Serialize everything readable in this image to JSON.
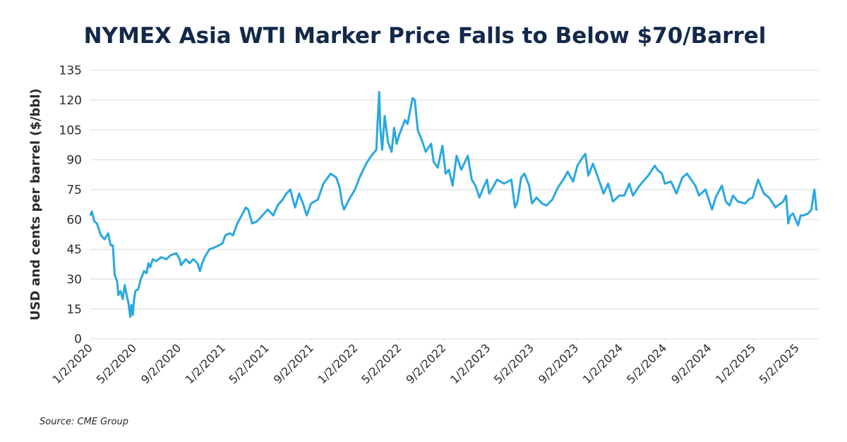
{
  "chart_data": {
    "type": "line",
    "title": "NYMEX Asia WTI Marker Price Falls to Below $70/Barrel",
    "xlabel": "",
    "ylabel": "USD and cents per barrel ($/bbl)",
    "ylim": [
      0,
      135
    ],
    "y_ticks": [
      0,
      15,
      30,
      45,
      60,
      75,
      90,
      105,
      120,
      135
    ],
    "x_ticks": [
      "1/2/2020",
      "5/2/2020",
      "9/2/2020",
      "1/2/2021",
      "5/2/2021",
      "9/2/2021",
      "1/2/2022",
      "5/2/2022",
      "9/2/2022",
      "1/2/2023",
      "5/2/2023",
      "9/2/2023",
      "1/2/2024",
      "5/2/2024",
      "9/2/2024",
      "1/2/2025",
      "5/2/2025"
    ],
    "xlim": [
      "2020-01-02",
      "2025-07-03"
    ],
    "grid": "horizontal",
    "legend": "none",
    "line_color": "#29a8e0",
    "series": [
      {
        "points": [
          [
            "2020-01-02",
            62
          ],
          [
            "2020-01-06",
            64
          ],
          [
            "2020-01-13",
            59
          ],
          [
            "2020-01-20",
            58
          ],
          [
            "2020-01-31",
            52
          ],
          [
            "2020-02-10",
            50
          ],
          [
            "2020-02-20",
            53
          ],
          [
            "2020-02-27",
            47
          ],
          [
            "2020-03-04",
            47
          ],
          [
            "2020-03-09",
            32
          ],
          [
            "2020-03-16",
            29
          ],
          [
            "2020-03-19",
            22
          ],
          [
            "2020-03-25",
            24
          ],
          [
            "2020-03-31",
            20
          ],
          [
            "2020-04-06",
            27
          ],
          [
            "2020-04-10",
            23
          ],
          [
            "2020-04-16",
            18
          ],
          [
            "2020-04-21",
            11
          ],
          [
            "2020-04-24",
            17
          ],
          [
            "2020-04-28",
            12
          ],
          [
            "2020-05-01",
            19
          ],
          [
            "2020-05-05",
            24
          ],
          [
            "2020-05-13",
            25
          ],
          [
            "2020-05-20",
            30
          ],
          [
            "2020-05-29",
            34
          ],
          [
            "2020-06-05",
            33
          ],
          [
            "2020-06-10",
            38
          ],
          [
            "2020-06-15",
            36
          ],
          [
            "2020-06-22",
            40
          ],
          [
            "2020-07-01",
            39
          ],
          [
            "2020-07-15",
            41
          ],
          [
            "2020-07-30",
            40
          ],
          [
            "2020-08-10",
            42
          ],
          [
            "2020-08-26",
            43
          ],
          [
            "2020-09-04",
            40
          ],
          [
            "2020-09-08",
            37
          ],
          [
            "2020-09-21",
            40
          ],
          [
            "2020-10-01",
            38
          ],
          [
            "2020-10-12",
            40
          ],
          [
            "2020-10-23",
            38
          ],
          [
            "2020-10-30",
            34
          ],
          [
            "2020-11-05",
            38
          ],
          [
            "2020-11-12",
            41
          ],
          [
            "2020-11-25",
            45
          ],
          [
            "2020-12-10",
            46
          ],
          [
            "2020-12-21",
            47
          ],
          [
            "2020-12-31",
            48
          ],
          [
            "2021-01-08",
            52
          ],
          [
            "2021-01-20",
            53
          ],
          [
            "2021-01-29",
            52
          ],
          [
            "2021-02-10",
            58
          ],
          [
            "2021-02-25",
            63
          ],
          [
            "2021-03-05",
            66
          ],
          [
            "2021-03-12",
            65
          ],
          [
            "2021-03-23",
            58
          ],
          [
            "2021-04-05",
            59
          ],
          [
            "2021-04-20",
            62
          ],
          [
            "2021-05-05",
            65
          ],
          [
            "2021-05-20",
            62
          ],
          [
            "2021-06-01",
            67
          ],
          [
            "2021-06-15",
            70
          ],
          [
            "2021-06-25",
            73
          ],
          [
            "2021-07-06",
            75
          ],
          [
            "2021-07-19",
            66
          ],
          [
            "2021-07-30",
            73
          ],
          [
            "2021-08-10",
            68
          ],
          [
            "2021-08-20",
            62
          ],
          [
            "2021-09-01",
            68
          ],
          [
            "2021-09-20",
            70
          ],
          [
            "2021-10-05",
            78
          ],
          [
            "2021-10-25",
            83
          ],
          [
            "2021-11-10",
            81
          ],
          [
            "2021-11-19",
            76
          ],
          [
            "2021-11-26",
            68
          ],
          [
            "2021-12-01",
            65
          ],
          [
            "2021-12-15",
            70
          ],
          [
            "2021-12-31",
            75
          ],
          [
            "2022-01-15",
            82
          ],
          [
            "2022-01-31",
            88
          ],
          [
            "2022-02-14",
            92
          ],
          [
            "2022-02-28",
            95
          ],
          [
            "2022-03-03",
            107
          ],
          [
            "2022-03-08",
            124
          ],
          [
            "2022-03-11",
            106
          ],
          [
            "2022-03-16",
            95
          ],
          [
            "2022-03-23",
            112
          ],
          [
            "2022-04-01",
            99
          ],
          [
            "2022-04-11",
            94
          ],
          [
            "2022-04-18",
            106
          ],
          [
            "2022-04-25",
            98
          ],
          [
            "2022-05-03",
            103
          ],
          [
            "2022-05-18",
            110
          ],
          [
            "2022-05-25",
            108
          ],
          [
            "2022-06-08",
            121
          ],
          [
            "2022-06-14",
            120
          ],
          [
            "2022-06-22",
            105
          ],
          [
            "2022-07-05",
            99
          ],
          [
            "2022-07-14",
            94
          ],
          [
            "2022-07-29",
            98
          ],
          [
            "2022-08-05",
            89
          ],
          [
            "2022-08-16",
            86
          ],
          [
            "2022-08-29",
            97
          ],
          [
            "2022-09-07",
            83
          ],
          [
            "2022-09-16",
            85
          ],
          [
            "2022-09-26",
            77
          ],
          [
            "2022-10-07",
            92
          ],
          [
            "2022-10-20",
            85
          ],
          [
            "2022-11-07",
            92
          ],
          [
            "2022-11-18",
            80
          ],
          [
            "2022-11-28",
            77
          ],
          [
            "2022-12-09",
            71
          ],
          [
            "2022-12-20",
            76
          ],
          [
            "2022-12-30",
            80
          ],
          [
            "2023-01-05",
            73
          ],
          [
            "2023-01-27",
            80
          ],
          [
            "2023-02-15",
            78
          ],
          [
            "2023-03-07",
            80
          ],
          [
            "2023-03-17",
            66
          ],
          [
            "2023-03-24",
            69
          ],
          [
            "2023-04-03",
            81
          ],
          [
            "2023-04-12",
            83
          ],
          [
            "2023-04-25",
            77
          ],
          [
            "2023-05-03",
            68
          ],
          [
            "2023-05-15",
            71
          ],
          [
            "2023-05-31",
            68
          ],
          [
            "2023-06-12",
            67
          ],
          [
            "2023-06-28",
            70
          ],
          [
            "2023-07-13",
            76
          ],
          [
            "2023-07-28",
            80
          ],
          [
            "2023-08-09",
            84
          ],
          [
            "2023-08-24",
            79
          ],
          [
            "2023-09-05",
            87
          ],
          [
            "2023-09-15",
            90
          ],
          [
            "2023-09-27",
            93
          ],
          [
            "2023-10-05",
            82
          ],
          [
            "2023-10-18",
            88
          ],
          [
            "2023-11-01",
            81
          ],
          [
            "2023-11-16",
            73
          ],
          [
            "2023-11-29",
            78
          ],
          [
            "2023-12-12",
            69
          ],
          [
            "2023-12-29",
            72
          ],
          [
            "2024-01-12",
            72
          ],
          [
            "2024-01-26",
            78
          ],
          [
            "2024-02-05",
            72
          ],
          [
            "2024-02-23",
            77
          ],
          [
            "2024-03-18",
            82
          ],
          [
            "2024-04-05",
            87
          ],
          [
            "2024-04-12",
            85
          ],
          [
            "2024-04-25",
            83
          ],
          [
            "2024-05-03",
            78
          ],
          [
            "2024-05-20",
            79
          ],
          [
            "2024-06-04",
            73
          ],
          [
            "2024-06-20",
            81
          ],
          [
            "2024-07-03",
            83
          ],
          [
            "2024-07-26",
            77
          ],
          [
            "2024-08-05",
            72
          ],
          [
            "2024-08-23",
            75
          ],
          [
            "2024-09-10",
            65
          ],
          [
            "2024-09-20",
            71
          ],
          [
            "2024-10-07",
            77
          ],
          [
            "2024-10-18",
            69
          ],
          [
            "2024-10-28",
            67
          ],
          [
            "2024-11-07",
            72
          ],
          [
            "2024-11-20",
            69
          ],
          [
            "2024-12-10",
            68
          ],
          [
            "2024-12-20",
            70
          ],
          [
            "2024-12-31",
            71
          ],
          [
            "2025-01-15",
            80
          ],
          [
            "2025-01-31",
            73
          ],
          [
            "2025-02-14",
            71
          ],
          [
            "2025-03-04",
            66
          ],
          [
            "2025-03-10",
            67
          ],
          [
            "2025-03-25",
            69
          ],
          [
            "2025-04-02",
            72
          ],
          [
            "2025-04-08",
            58
          ],
          [
            "2025-04-14",
            62
          ],
          [
            "2025-04-21",
            63
          ],
          [
            "2025-05-05",
            57
          ],
          [
            "2025-05-12",
            62
          ],
          [
            "2025-05-20",
            62
          ],
          [
            "2025-06-02",
            63
          ],
          [
            "2025-06-11",
            65
          ],
          [
            "2025-06-16",
            72
          ],
          [
            "2025-06-19",
            75
          ],
          [
            "2025-06-23",
            68
          ],
          [
            "2025-06-24",
            65
          ],
          [
            "2025-06-27",
            65
          ]
        ]
      }
    ]
  },
  "source": "Source: CME Group"
}
